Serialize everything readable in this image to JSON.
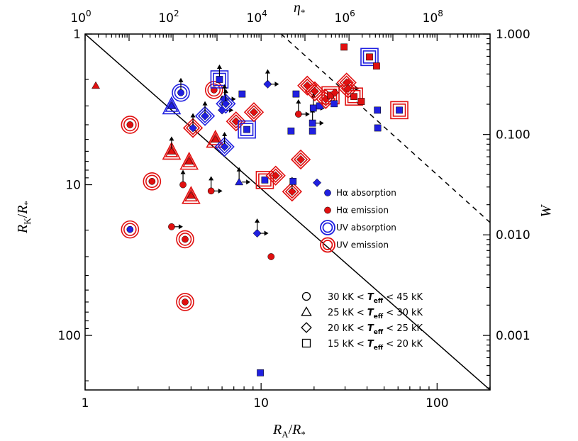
{
  "chart_data": {
    "type": "scatter",
    "xlabel": "R_A/R_*",
    "ylabel": "R_K/R_*",
    "top_axis_label": "η_*",
    "right_axis_label": "W",
    "x_scale": "log",
    "y_scale": "log",
    "x_range": [
      1,
      200
    ],
    "y_range": [
      1,
      230
    ],
    "y_direction": "inverted",
    "x_ticks": [
      {
        "value": 1,
        "label": "1"
      },
      {
        "value": 10,
        "label": "10"
      },
      {
        "value": 100,
        "label": "100"
      }
    ],
    "y_ticks": [
      {
        "value": 1,
        "label": "1"
      },
      {
        "value": 10,
        "label": "10"
      },
      {
        "value": 100,
        "label": "100"
      }
    ],
    "top_ticks": [
      {
        "base": "10",
        "exp": "0",
        "x_value": 1.0
      },
      {
        "base": "10",
        "exp": "2",
        "x_value": 3.16
      },
      {
        "base": "10",
        "exp": "4",
        "x_value": 10.0
      },
      {
        "base": "10",
        "exp": "6",
        "x_value": 31.6
      },
      {
        "base": "10",
        "exp": "8",
        "x_value": 100.0
      }
    ],
    "right_ticks": [
      {
        "label": "1.000",
        "y_value": 1.0
      },
      {
        "label": "0.100",
        "y_value": 4.64
      },
      {
        "label": "0.010",
        "y_value": 21.5
      },
      {
        "label": "0.001",
        "y_value": 100.0
      }
    ],
    "lines": [
      {
        "name": "solid",
        "style": "solid",
        "points": [
          [
            1,
            1
          ],
          [
            200,
            230
          ]
        ]
      },
      {
        "name": "dashed",
        "style": "dashed",
        "points": [
          [
            13,
            1
          ],
          [
            200,
            17.8
          ]
        ]
      }
    ],
    "legend": {
      "colors": [
        {
          "label": "Hα absorption",
          "color": "#2020e0",
          "symbol": "dot"
        },
        {
          "label": "Hα emission",
          "color": "#e01010",
          "symbol": "dot"
        },
        {
          "label": "UV absorption",
          "color": "#2020e0",
          "symbol": "ring"
        },
        {
          "label": "UV emission",
          "color": "#e01010",
          "symbol": "ring"
        }
      ],
      "shapes": [
        {
          "shape": "circle",
          "lo": "30 kK <",
          "teff": "T",
          "sub": "eff",
          "hi": "< 45 kK"
        },
        {
          "shape": "triangle",
          "lo": "25 kK <",
          "teff": "T",
          "sub": "eff",
          "hi": "< 30 kK"
        },
        {
          "shape": "diamond",
          "lo": "20 kK <",
          "teff": "T",
          "sub": "eff",
          "hi": "< 25 kK"
        },
        {
          "shape": "square",
          "lo": "15 kK <",
          "teff": "T",
          "sub": "eff",
          "hi": "< 20 kK"
        }
      ]
    },
    "points": [
      {
        "x": 1.15,
        "y": 2.2,
        "shape": "triangle",
        "color": "red"
      },
      {
        "x": 1.8,
        "y": 4.0,
        "shape": "circle",
        "color": "red",
        "ring": "red"
      },
      {
        "x": 1.8,
        "y": 19.8,
        "shape": "circle",
        "color": "blue",
        "ring": "red"
      },
      {
        "x": 2.4,
        "y": 9.5,
        "shape": "circle",
        "color": "red",
        "ring": "red"
      },
      {
        "x": 3.1,
        "y": 3.0,
        "shape": "triangle",
        "color": "blue",
        "ring": "blue"
      },
      {
        "x": 3.1,
        "y": 6.0,
        "shape": "triangle",
        "color": "red",
        "ring": "red",
        "arrows": [
          "up"
        ]
      },
      {
        "x": 3.1,
        "y": 19.0,
        "shape": "circle",
        "color": "red",
        "arrows": [
          "right"
        ]
      },
      {
        "x": 3.5,
        "y": 2.45,
        "shape": "circle",
        "color": "blue",
        "ring": "blue",
        "arrows": [
          "up"
        ]
      },
      {
        "x": 3.6,
        "y": 10.0,
        "shape": "circle",
        "color": "red",
        "arrows": [
          "up"
        ]
      },
      {
        "x": 3.7,
        "y": 23.0,
        "shape": "circle",
        "color": "red",
        "ring": "red"
      },
      {
        "x": 3.7,
        "y": 60.0,
        "shape": "circle",
        "color": "red",
        "ring": "red"
      },
      {
        "x": 3.9,
        "y": 7.0,
        "shape": "triangle",
        "color": "red",
        "ring": "red"
      },
      {
        "x": 4.0,
        "y": 11.8,
        "shape": "triangle",
        "color": "red",
        "ring": "red"
      },
      {
        "x": 4.1,
        "y": 4.2,
        "shape": "diamond",
        "color": "blue",
        "ring": "red",
        "arrows": [
          "up"
        ]
      },
      {
        "x": 4.8,
        "y": 3.5,
        "shape": "diamond",
        "color": "blue",
        "ring": "blue",
        "arrows": [
          "up"
        ]
      },
      {
        "x": 5.2,
        "y": 11.0,
        "shape": "circle",
        "color": "red",
        "arrows": [
          "up",
          "right"
        ]
      },
      {
        "x": 5.4,
        "y": 2.35,
        "shape": "circle",
        "color": "red",
        "ring": "red"
      },
      {
        "x": 5.5,
        "y": 5.0,
        "shape": "triangle",
        "color": "red",
        "ring": "red"
      },
      {
        "x": 5.8,
        "y": 2.0,
        "shape": "square",
        "color": "blue",
        "ring": "blue",
        "arrows": [
          "up"
        ]
      },
      {
        "x": 6.0,
        "y": 3.2,
        "shape": "diamond",
        "color": "blue",
        "arrows": [
          "up",
          "right"
        ]
      },
      {
        "x": 6.2,
        "y": 2.7,
        "shape": "diamond",
        "color": "blue",
        "arrows": [
          "up",
          "right"
        ]
      },
      {
        "x": 6.2,
        "y": 5.6,
        "shape": "diamond",
        "color": "blue",
        "ring": "blue",
        "arrows": [
          "up"
        ]
      },
      {
        "x": 6.3,
        "y": 2.9,
        "shape": "diamond",
        "color": "blue",
        "ring": "blue",
        "arrows": [
          "up"
        ]
      },
      {
        "x": 7.2,
        "y": 3.8,
        "shape": "diamond",
        "color": "red",
        "ring": "red"
      },
      {
        "x": 7.5,
        "y": 9.6,
        "shape": "triangle",
        "color": "blue",
        "arrows": [
          "up",
          "right"
        ]
      },
      {
        "x": 7.8,
        "y": 2.5,
        "shape": "square",
        "color": "blue"
      },
      {
        "x": 8.3,
        "y": 4.3,
        "shape": "square",
        "color": "blue",
        "ring": "blue"
      },
      {
        "x": 9.1,
        "y": 3.3,
        "shape": "diamond",
        "color": "red",
        "ring": "red"
      },
      {
        "x": 9.5,
        "y": 21.0,
        "shape": "diamond",
        "color": "blue",
        "arrows": [
          "up",
          "right"
        ]
      },
      {
        "x": 9.9,
        "y": 177.0,
        "shape": "square",
        "color": "blue"
      },
      {
        "x": 10.5,
        "y": 9.3,
        "shape": "square",
        "color": "blue",
        "ring": "red"
      },
      {
        "x": 10.9,
        "y": 2.15,
        "shape": "diamond",
        "color": "blue",
        "arrows": [
          "up",
          "right"
        ]
      },
      {
        "x": 11.4,
        "y": 30.0,
        "shape": "circle",
        "color": "red"
      },
      {
        "x": 12.1,
        "y": 8.7,
        "shape": "diamond",
        "color": "red",
        "ring": "red"
      },
      {
        "x": 14.8,
        "y": 4.4,
        "shape": "square",
        "color": "blue"
      },
      {
        "x": 15.0,
        "y": 11.1,
        "shape": "diamond",
        "color": "red",
        "ring": "red",
        "arrows": [
          "up"
        ]
      },
      {
        "x": 15.2,
        "y": 9.5,
        "shape": "square",
        "color": "blue"
      },
      {
        "x": 15.8,
        "y": 2.5,
        "shape": "square",
        "color": "blue"
      },
      {
        "x": 16.3,
        "y": 3.4,
        "shape": "circle",
        "color": "red",
        "arrows": [
          "up",
          "right"
        ]
      },
      {
        "x": 16.8,
        "y": 6.8,
        "shape": "diamond",
        "color": "red",
        "ring": "red"
      },
      {
        "x": 18.3,
        "y": 2.2,
        "shape": "diamond",
        "color": "red",
        "ring": "red"
      },
      {
        "x": 19.6,
        "y": 4.4,
        "shape": "square",
        "color": "blue"
      },
      {
        "x": 19.6,
        "y": 3.9,
        "shape": "square",
        "color": "blue",
        "arrows": [
          "up",
          "right"
        ]
      },
      {
        "x": 19.8,
        "y": 3.1,
        "shape": "square",
        "color": "blue",
        "arrows": [
          "up",
          "right"
        ]
      },
      {
        "x": 20.2,
        "y": 2.4,
        "shape": "diamond",
        "color": "red",
        "ring": "red"
      },
      {
        "x": 20.8,
        "y": 9.7,
        "shape": "diamond",
        "color": "blue"
      },
      {
        "x": 21.5,
        "y": 3.0,
        "shape": "square",
        "color": "blue"
      },
      {
        "x": 23.3,
        "y": 2.7,
        "shape": "diamond",
        "color": "red",
        "ring": "red"
      },
      {
        "x": 24.8,
        "y": 2.55,
        "shape": "square",
        "color": "red",
        "ring": "red"
      },
      {
        "x": 26.0,
        "y": 2.9,
        "shape": "square",
        "color": "blue"
      },
      {
        "x": 26.2,
        "y": 2.45,
        "shape": "diamond",
        "color": "red"
      },
      {
        "x": 29.6,
        "y": 1.22,
        "shape": "square",
        "color": "red"
      },
      {
        "x": 30.6,
        "y": 2.1,
        "shape": "diamond",
        "color": "red",
        "ring": "red"
      },
      {
        "x": 31.2,
        "y": 2.3,
        "shape": "diamond",
        "color": "red",
        "ring": "red",
        "arrows": [
          "right"
        ]
      },
      {
        "x": 33.7,
        "y": 2.6,
        "shape": "square",
        "color": "red",
        "ring": "red"
      },
      {
        "x": 37.1,
        "y": 2.8,
        "shape": "square",
        "color": "red"
      },
      {
        "x": 41.3,
        "y": 1.42,
        "shape": "square",
        "color": "red",
        "ring": "blue"
      },
      {
        "x": 45.3,
        "y": 1.63,
        "shape": "square",
        "color": "red"
      },
      {
        "x": 45.8,
        "y": 3.2,
        "shape": "square",
        "color": "blue"
      },
      {
        "x": 46.0,
        "y": 4.2,
        "shape": "square",
        "color": "blue"
      },
      {
        "x": 61.0,
        "y": 3.2,
        "shape": "square",
        "color": "blue",
        "ring": "red"
      }
    ]
  }
}
